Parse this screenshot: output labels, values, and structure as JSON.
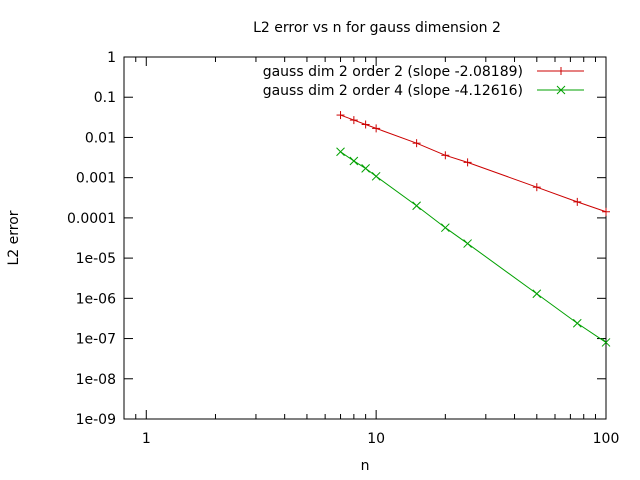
{
  "chart_data": {
    "type": "line",
    "title": "L2 error vs n for gauss dimension 2",
    "xlabel": "n",
    "ylabel": "L2 error",
    "xscale": "log",
    "yscale": "log",
    "xlim": [
      0.8,
      100
    ],
    "ylim": [
      1e-09,
      1
    ],
    "grid": false,
    "legend_position": "top-right",
    "x_ticks": [
      {
        "value": 1,
        "label": "1"
      },
      {
        "value": 10,
        "label": "10"
      },
      {
        "value": 100,
        "label": "100"
      }
    ],
    "y_ticks": [
      {
        "value": 1,
        "label": "1"
      },
      {
        "value": 0.1,
        "label": "0.1"
      },
      {
        "value": 0.01,
        "label": "0.01"
      },
      {
        "value": 0.001,
        "label": "0.001"
      },
      {
        "value": 0.0001,
        "label": "0.0001"
      },
      {
        "value": 1e-05,
        "label": "1e-05"
      },
      {
        "value": 1e-06,
        "label": "1e-06"
      },
      {
        "value": 1e-07,
        "label": "1e-07"
      },
      {
        "value": 1e-08,
        "label": "1e-08"
      },
      {
        "value": 1e-09,
        "label": "1e-09"
      }
    ],
    "series": [
      {
        "name": "gauss dim 2 order 2 (slope -2.08189)",
        "color": "#cc0000",
        "marker": "plus",
        "x": [
          7,
          8,
          9,
          10,
          15,
          20,
          25,
          50,
          75,
          100
        ],
        "y": [
          0.036,
          0.027,
          0.021,
          0.0168,
          0.0072,
          0.0036,
          0.0024,
          0.00058,
          0.00025,
          0.000142
        ]
      },
      {
        "name": "gauss dim 2 order 4 (slope -4.12616)",
        "color": "#00a000",
        "marker": "cross",
        "x": [
          7,
          8,
          9,
          10,
          15,
          20,
          25,
          50,
          75,
          100
        ],
        "y": [
          0.0044,
          0.0026,
          0.0017,
          0.00108,
          0.0002,
          5.7e-05,
          2.3e-05,
          1.3e-06,
          2.4e-07,
          8e-08
        ]
      }
    ]
  }
}
